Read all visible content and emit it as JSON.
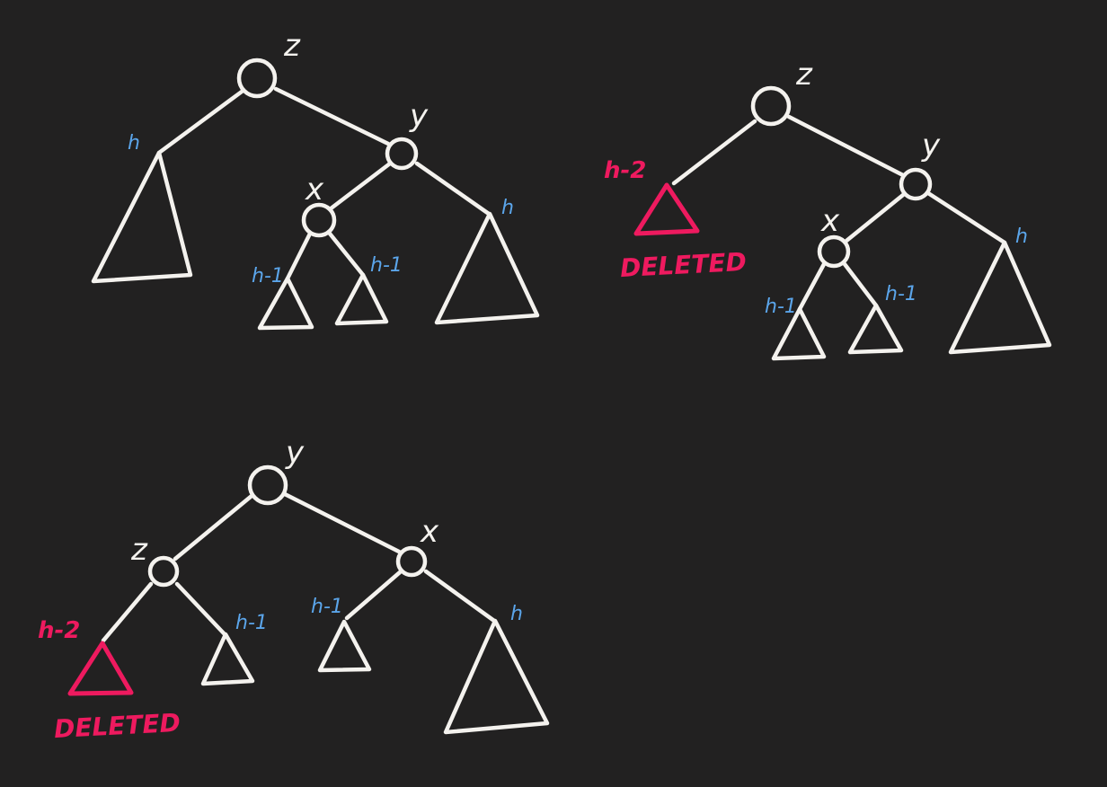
{
  "diagrams": {
    "original": {
      "nodes": {
        "z": "z",
        "y": "y",
        "x": "x"
      },
      "heights": {
        "z_left": "h",
        "y_right": "h",
        "x_left": "h-1",
        "x_right": "h-1"
      }
    },
    "after_delete": {
      "nodes": {
        "z": "z",
        "y": "y",
        "x": "x"
      },
      "heights": {
        "z_left": "h-2",
        "y_right": "h",
        "x_left": "h-1",
        "x_right": "h-1"
      },
      "deleted_label": "DELETED"
    },
    "rotated": {
      "nodes": {
        "y": "y",
        "z": "z",
        "x": "x"
      },
      "heights": {
        "z_left": "h-2",
        "z_right": "h-1",
        "x_left": "h-1",
        "x_right": "h"
      },
      "deleted_label": "DELETED"
    }
  },
  "colors": {
    "background": "#222121",
    "ink": "#f4f2ee",
    "height_label": "#5ba5ea",
    "deleted": "#ee1a5f"
  }
}
